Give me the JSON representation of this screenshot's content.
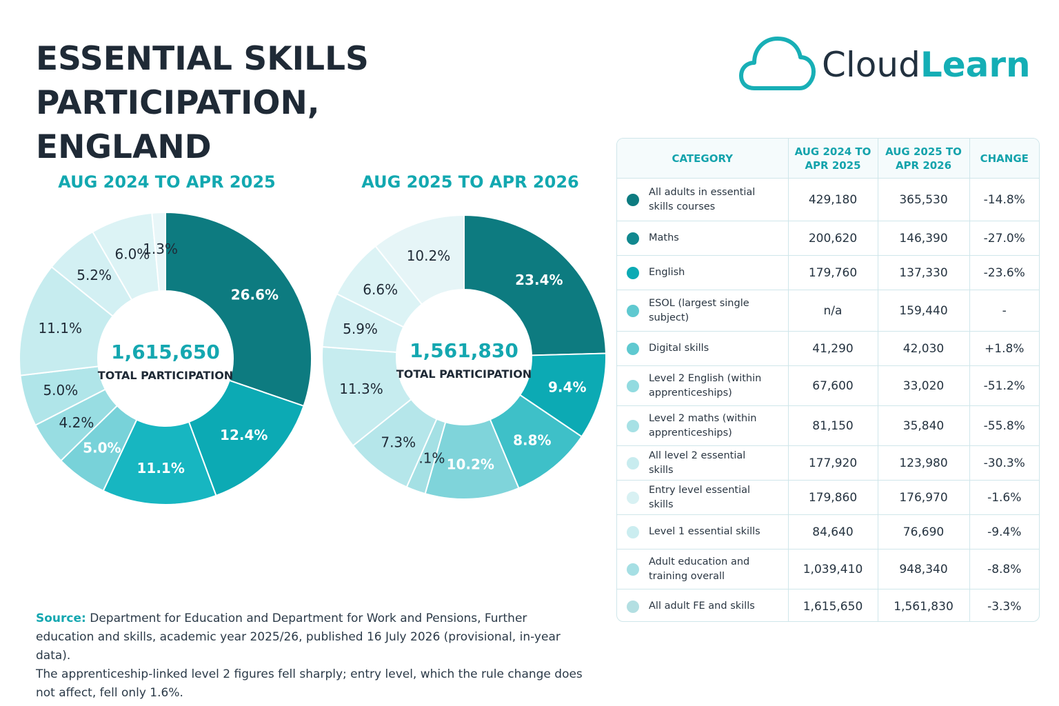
{
  "title_line1": "ESSENTIAL SKILLS PARTICIPATION,",
  "title_line2": "ENGLAND",
  "logo": {
    "part1": "Cloud",
    "part2": "Learn",
    "icon": "cloud-icon"
  },
  "colors": {
    "accent": "#14a7b0",
    "title": "#1f2a36"
  },
  "chart_data": [
    {
      "type": "pie",
      "title": "AUG 2024 TO APR 2025",
      "center_value": "1,615,650",
      "center_label": "TOTAL PARTICIPATION",
      "slices": [
        {
          "label": "26.6%",
          "value": 26.6,
          "color": "#0d7b80"
        },
        {
          "label": "12.4%",
          "value": 12.4,
          "color": "#0caab4"
        },
        {
          "label": "11.1%",
          "value": 11.1,
          "color": "#17b6c1"
        },
        {
          "label": "5.0%",
          "value": 5.0,
          "color": "#78d2d9"
        },
        {
          "label": "4.2%",
          "value": 4.2,
          "color": "#98dde2"
        },
        {
          "label": "5.0%",
          "value": 5.0,
          "color": "#b0e5e9"
        },
        {
          "label": "11.1%",
          "value": 11.1,
          "color": "#c6ecef"
        },
        {
          "label": "5.2%",
          "value": 5.2,
          "color": "#d3f0f3"
        },
        {
          "label": "6.0%",
          "value": 6.0,
          "color": "#dcf3f5"
        },
        {
          "label": "1.3%",
          "value": 1.3,
          "color": "#e8f6f8"
        }
      ]
    },
    {
      "type": "pie",
      "title": "AUG 2025 TO APR 2026",
      "center_value": "1,561,830",
      "center_label": "TOTAL PARTICIPATION",
      "slices": [
        {
          "label": "23.4%",
          "value": 23.4,
          "color": "#0d7b80"
        },
        {
          "label": "9.4%",
          "value": 9.4,
          "color": "#0caab4"
        },
        {
          "label": "8.8%",
          "value": 8.8,
          "color": "#3ec0c8"
        },
        {
          "label": "10.2%",
          "value": 10.2,
          "color": "#7fd4da"
        },
        {
          "label": "2.1%",
          "value": 2.1,
          "color": "#a4e0e4"
        },
        {
          "label": "7.3%",
          "value": 7.3,
          "color": "#b5e6ea"
        },
        {
          "label": "11.3%",
          "value": 11.3,
          "color": "#c6ecef"
        },
        {
          "label": "5.9%",
          "value": 5.9,
          "color": "#d3f0f3"
        },
        {
          "label": "6.6%",
          "value": 6.6,
          "color": "#dcf3f5"
        },
        {
          "label": "10.2%",
          "value": 10.2,
          "color": "#e6f5f7"
        }
      ]
    },
    {
      "type": "table",
      "columns": [
        "CATEGORY",
        "AUG 2024 TO APR 2025",
        "AUG 2025 TO APR 2026",
        "CHANGE"
      ],
      "rows": [
        {
          "category": "All adults in essential skills courses",
          "v2024": "429,180",
          "v2025": "365,530",
          "change": "-14.8%",
          "color": "#0d7b80"
        },
        {
          "category": "Maths",
          "v2024": "200,620",
          "v2025": "146,390",
          "change": "-27.0%",
          "color": "#11888f"
        },
        {
          "category": "English",
          "v2024": "179,760",
          "v2025": "137,330",
          "change": "-23.6%",
          "color": "#0caab4"
        },
        {
          "category": "ESOL (largest single subject)",
          "v2024": "n/a",
          "v2025": "159,440",
          "change": "-",
          "color": "#5fc9d0"
        },
        {
          "category": "Digital skills",
          "v2024": "41,290",
          "v2025": "42,030",
          "change": "+1.8%",
          "color": "#5fc9d0"
        },
        {
          "category": "Level 2 English (within apprenticeships)",
          "v2024": "67,600",
          "v2025": "33,020",
          "change": "-51.2%",
          "color": "#92dbe0"
        },
        {
          "category": "Level 2 maths (within apprenticeships)",
          "v2024": "81,150",
          "v2025": "35,840",
          "change": "-55.8%",
          "color": "#a7e1e5"
        },
        {
          "category": "All level 2 essential skills",
          "v2024": "177,920",
          "v2025": "123,980",
          "change": "-30.3%",
          "color": "#c8ecef"
        },
        {
          "category": "Entry level essential skills",
          "v2024": "179,860",
          "v2025": "176,970",
          "change": "-1.6%",
          "color": "#d8f1f3"
        },
        {
          "category": "Level 1 essential skills",
          "v2024": "84,640",
          "v2025": "76,690",
          "change": "-9.4%",
          "color": "#cbedf0"
        },
        {
          "category": "Adult education and training overall",
          "v2024": "1,039,410",
          "v2025": "948,340",
          "change": "-8.8%",
          "color": "#a6dfe4"
        },
        {
          "category": "All adult FE and skills",
          "v2024": "1,615,650",
          "v2025": "1,561,830",
          "change": "-3.3%",
          "color": "#b3dfe2"
        }
      ]
    }
  ],
  "source": {
    "label": "Source:",
    "text": " Department for Education and Department for Work and Pensions, Further education and skills, academic year 2025/26, published 16 July 2026 (provisional, in-year data).",
    "note": "The apprenticeship-linked level 2 figures fell sharply; entry level, which the rule change does not affect, fell only 1.6%."
  }
}
